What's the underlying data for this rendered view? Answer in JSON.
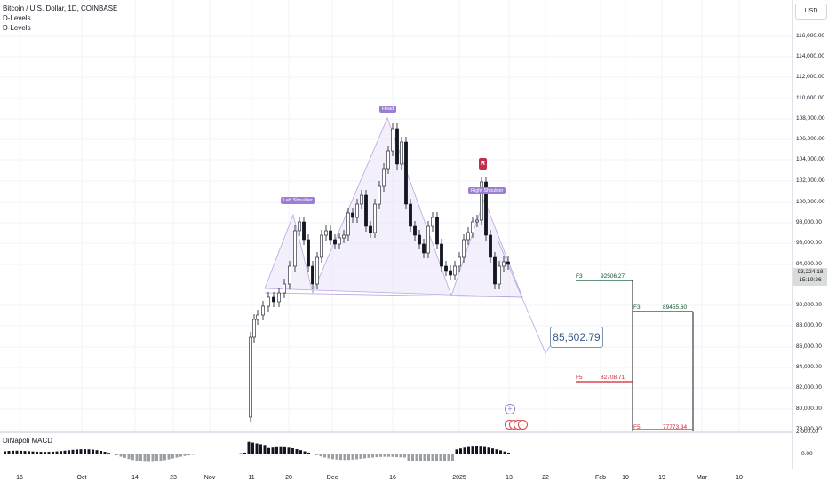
{
  "header": {
    "symbol": "Bitcoin / U.S. Dollar, 1D, COINBASE",
    "indicator_1": "D-Levels",
    "indicator_2": "D-Levels"
  },
  "macd": {
    "title": "DiNapoli MACD",
    "zero_label": "0.00"
  },
  "price_scale": {
    "currency": "USD",
    "ticks": [
      "116,000.00",
      "114,000.00",
      "112,000.00",
      "110,000.00",
      "108,000.00",
      "106,000.00",
      "104,000.00",
      "102,000.00",
      "100,000.00",
      "98,000.00",
      "96,000.00",
      "94,000.00",
      "90,000.00",
      "88,000.00",
      "86,000.00",
      "84,000.00",
      "82,000.00",
      "80,000.00",
      "78,000.00"
    ],
    "macd_top_label": "2,000.00",
    "current_price": "93,224.18",
    "countdown": "15:19:26"
  },
  "time_scale": {
    "ticks": [
      "16",
      "Oct",
      "14",
      "23",
      "Nov",
      "11",
      "20",
      "Dec",
      "16",
      "2025",
      "13",
      "22",
      "Feb",
      "10",
      "19",
      "Mar",
      "10"
    ]
  },
  "patterns": {
    "left_shoulder": "Left Shoulder",
    "head": "Head",
    "right_shoulder": "Right Shoulder",
    "r_badge": "R"
  },
  "target_price": "85,502.79",
  "fib_levels": [
    {
      "tag": "F3",
      "value": "92506.27",
      "color": "#0a4f2a"
    },
    {
      "tag": "F3",
      "value": "89455.60",
      "color": "#0a4f2a"
    },
    {
      "tag": "F5",
      "value": "82708.71",
      "color": "#d02030"
    },
    {
      "tag": "F5",
      "value": "77773.34",
      "color": "#d02030"
    }
  ],
  "colors": {
    "bull": "#ffffff",
    "bear": "#131722",
    "pattern": "#9c7fd3",
    "grid": "#f0f3fa"
  }
}
